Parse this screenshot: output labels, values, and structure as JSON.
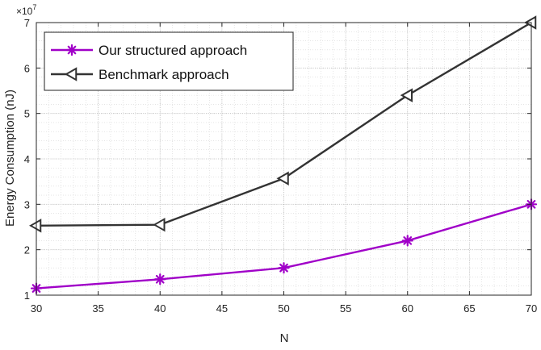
{
  "chart_data": {
    "type": "line",
    "xlabel": "N",
    "ylabel": "Energy Consumption (nJ)",
    "y_exponent_prefix": "×10",
    "y_exponent_power": "7",
    "x": [
      30,
      40,
      50,
      60,
      70
    ],
    "xlim": [
      30,
      70
    ],
    "ylim": [
      1,
      7
    ],
    "x_ticks": [
      30,
      35,
      40,
      45,
      50,
      55,
      60,
      65,
      70
    ],
    "y_ticks": [
      1,
      2,
      3,
      4,
      5,
      6,
      7
    ],
    "grid": true,
    "minor_grid": true,
    "legend_position": "top-left",
    "series": [
      {
        "name": "Our structured approach",
        "color": "#a000c8",
        "marker": "asterisk",
        "values": [
          1.15,
          1.35,
          1.6,
          2.2,
          3.0
        ]
      },
      {
        "name": "Benchmark approach",
        "color": "#333333",
        "marker": "triangle-left",
        "values": [
          2.53,
          2.55,
          3.57,
          5.4,
          7.0
        ]
      }
    ]
  }
}
